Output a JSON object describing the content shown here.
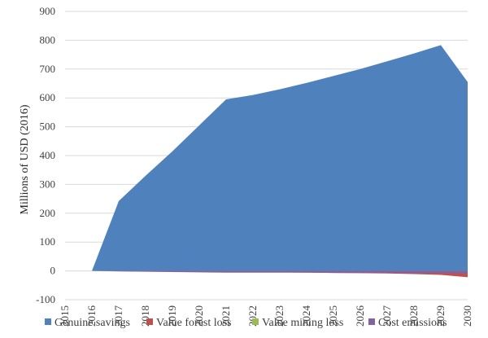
{
  "chart_data": {
    "type": "area",
    "title": "",
    "ylabel": "Millions of USD (2016)",
    "xlabel": "",
    "x": [
      "2015",
      "2016",
      "2017",
      "2018",
      "2019",
      "2020",
      "2021",
      "2022",
      "2023",
      "2024",
      "2025",
      "2026",
      "2027",
      "2028",
      "2029",
      "2030"
    ],
    "ylim": [
      -100,
      900
    ],
    "yticks": [
      -100,
      0,
      100,
      200,
      300,
      400,
      500,
      600,
      700,
      800,
      900
    ],
    "grid": true,
    "legend": "bottom",
    "series": [
      {
        "name": "Genuine savings",
        "color": "#4f81bd",
        "values": [
          null,
          0,
          242,
          330,
          415,
          505,
          595,
          610,
          630,
          652,
          676,
          700,
          727,
          754,
          783,
          655
        ]
      },
      {
        "name": "Value forest loss",
        "color": "#c0504d",
        "values": [
          null,
          0,
          -1,
          -2,
          -2,
          -3,
          -4,
          -5,
          -5,
          -6,
          -7,
          -8,
          -9,
          -11,
          -14,
          -22
        ]
      },
      {
        "name": "Value mining loss",
        "color": "#9bbb59",
        "values": [
          null,
          0,
          0,
          0,
          0,
          0,
          0,
          0,
          0,
          0,
          0,
          0,
          0,
          0,
          0,
          0
        ]
      },
      {
        "name": "Cost emissions",
        "color": "#8064a2",
        "values": [
          null,
          0,
          -2,
          -3,
          -4,
          -5,
          -6,
          -6,
          -6,
          -6,
          -7,
          -7,
          -7,
          -8,
          -8,
          -9
        ]
      }
    ]
  }
}
